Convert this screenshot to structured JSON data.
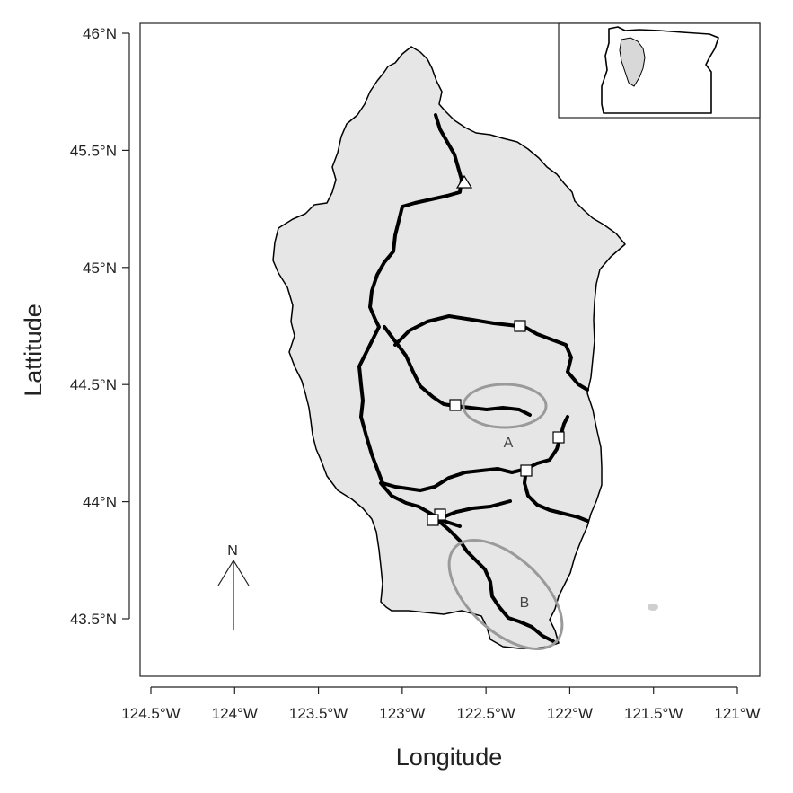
{
  "map": {
    "x_axis_title": "Longitude",
    "y_axis_title": "Lattitude",
    "x_ticks": [
      {
        "value": -124.5,
        "label": "124.5°W"
      },
      {
        "value": -124.0,
        "label": "124°W"
      },
      {
        "value": -123.5,
        "label": "123.5°W"
      },
      {
        "value": -123.0,
        "label": "123°W"
      },
      {
        "value": -122.5,
        "label": "122.5°W"
      },
      {
        "value": -122.0,
        "label": "122°W"
      },
      {
        "value": -121.5,
        "label": "121.5°W"
      },
      {
        "value": -121.0,
        "label": "121°W"
      }
    ],
    "y_ticks": [
      {
        "value": 46.0,
        "label": "46°N"
      },
      {
        "value": 45.5,
        "label": "45.5°N"
      },
      {
        "value": 45.0,
        "label": "45°N"
      },
      {
        "value": 44.5,
        "label": "44.5°N"
      },
      {
        "value": 44.0,
        "label": "44°N"
      },
      {
        "value": 43.5,
        "label": "43.5°N"
      }
    ],
    "north_arrow_label": "N",
    "annotations": [
      {
        "label": "A"
      },
      {
        "label": "B"
      }
    ],
    "colors": {
      "basin_fill": "#e6e6e6",
      "river": "#000000",
      "ellipse": "#9a9a9a",
      "frame": "#222222"
    }
  }
}
